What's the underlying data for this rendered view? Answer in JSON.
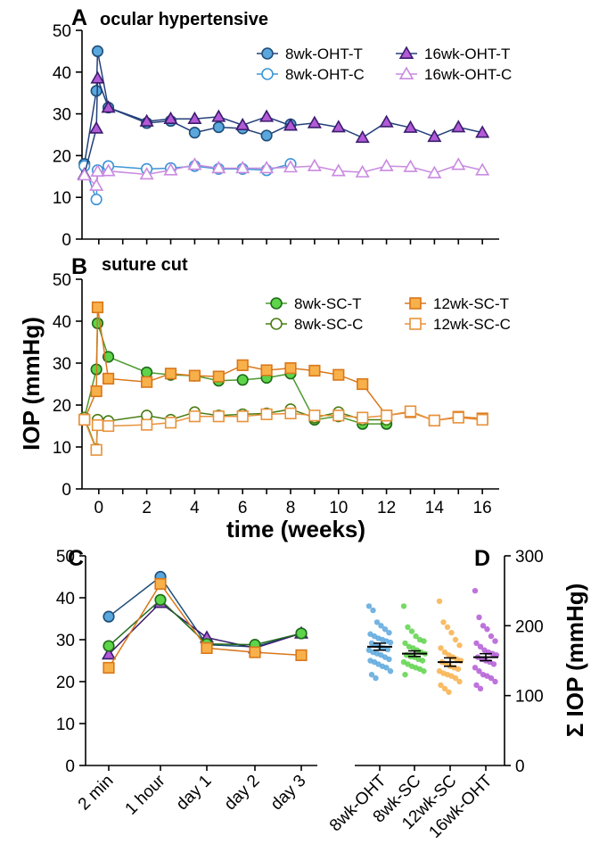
{
  "colors": {
    "ohtT_fill": "#5aa7dd",
    "ohtT_stroke": "#1f4e79",
    "ohtC": "#3d95d6",
    "oht16T_fill": "#b35ad6",
    "oht16T_stroke": "#3a1d6e",
    "oht16C": "#c98ae0",
    "scT_fill": "#5ed44a",
    "scT_stroke": "#1f6b1a",
    "scC": "#4a7d14",
    "sc12T_fill": "#f8b04a",
    "sc12T_stroke": "#d9771a",
    "sc12C": "#e8923a",
    "line_oht": "#23407a",
    "line_sc": "#4d9a2f"
  },
  "labels": {
    "panel_a": "A",
    "panel_a_title": "ocular hypertensive",
    "panel_b": "B",
    "panel_b_title": "suture cut",
    "panel_c": "C",
    "panel_d": "D",
    "y_left": "IOP (mmHg)",
    "x_bottom": "time (weeks)",
    "y_right": "Σ IOP (mmHg)"
  },
  "chart_data": [
    {
      "panel": "A",
      "type": "line",
      "title": "ocular hypertensive",
      "ylim": [
        0,
        50
      ],
      "yticks": [
        0,
        10,
        20,
        30,
        40,
        50
      ],
      "xlim": [
        -0.7,
        16.7
      ],
      "legend": "top-right",
      "series": [
        {
          "name": "8wk-OHT-T",
          "marker": "circle-filled",
          "points": [
            [
              -0.6,
              18
            ],
            [
              -0.1,
              35.5
            ],
            [
              -0.05,
              45
            ],
            [
              0.4,
              31.5
            ],
            [
              2,
              27.8
            ],
            [
              3,
              28.3
            ],
            [
              4,
              25.5
            ],
            [
              5,
              26.8
            ],
            [
              6,
              26.5
            ],
            [
              7,
              24.8
            ],
            [
              8,
              27.5
            ]
          ]
        },
        {
          "name": "8wk-OHT-C",
          "marker": "circle-open",
          "points": [
            [
              -0.6,
              17.5
            ],
            [
              -0.1,
              9.5
            ],
            [
              -0.05,
              16.5
            ],
            [
              0.4,
              17.5
            ],
            [
              2,
              16.8
            ],
            [
              3,
              17
            ],
            [
              4,
              17.5
            ],
            [
              5,
              16.8
            ],
            [
              6,
              16.8
            ],
            [
              7,
              16.5
            ],
            [
              8,
              18
            ]
          ]
        },
        {
          "name": "16wk-OHT-T",
          "marker": "triangle-filled",
          "points": [
            [
              -0.6,
              15.5
            ],
            [
              -0.1,
              26.5
            ],
            [
              -0.05,
              38.5
            ],
            [
              0.4,
              31.5
            ],
            [
              2,
              28.2
            ],
            [
              3,
              28.8
            ],
            [
              4,
              28.8
            ],
            [
              5,
              29.3
            ],
            [
              6,
              27.3
            ],
            [
              7,
              29.3
            ],
            [
              8,
              27.2
            ],
            [
              9,
              27.8
            ],
            [
              10,
              26.8
            ],
            [
              11,
              24.3
            ],
            [
              12,
              28
            ],
            [
              13,
              26.7
            ],
            [
              14,
              24.5
            ],
            [
              15,
              26.8
            ],
            [
              16,
              25.5
            ]
          ]
        },
        {
          "name": "16wk-OHT-C",
          "marker": "triangle-open",
          "points": [
            [
              -0.6,
              15.3
            ],
            [
              -0.1,
              12.8
            ],
            [
              -0.05,
              16.2
            ],
            [
              0.4,
              16.3
            ],
            [
              2,
              15.5
            ],
            [
              3,
              16.5
            ],
            [
              4,
              17.8
            ],
            [
              5,
              17
            ],
            [
              6,
              17
            ],
            [
              7,
              17
            ],
            [
              8,
              17.2
            ],
            [
              9,
              17.5
            ],
            [
              10,
              16.3
            ],
            [
              11,
              16
            ],
            [
              12,
              17.5
            ],
            [
              13,
              17.3
            ],
            [
              14,
              15.8
            ],
            [
              15,
              17.8
            ],
            [
              16,
              16.5
            ]
          ]
        }
      ]
    },
    {
      "panel": "B",
      "type": "line",
      "title": "suture cut",
      "xlabel": "time (weeks)",
      "ylabel": "IOP (mmHg)",
      "ylim": [
        0,
        50
      ],
      "yticks": [
        0,
        10,
        20,
        30,
        40,
        50
      ],
      "xlim": [
        -0.7,
        16.7
      ],
      "xticks": [
        0,
        2,
        4,
        6,
        8,
        10,
        12,
        14,
        16
      ],
      "legend": "top-right",
      "series": [
        {
          "name": "8wk-SC-T",
          "marker": "circle-filled",
          "points": [
            [
              -0.6,
              17
            ],
            [
              -0.1,
              28.5
            ],
            [
              -0.05,
              39.5
            ],
            [
              0.4,
              31.5
            ],
            [
              2,
              27.8
            ],
            [
              3,
              27.2
            ],
            [
              4,
              27
            ],
            [
              5,
              25.8
            ],
            [
              6,
              26
            ],
            [
              7,
              26.5
            ],
            [
              8,
              27.5
            ],
            [
              9,
              16.5
            ],
            [
              10,
              17.3
            ],
            [
              11,
              15.5
            ],
            [
              12,
              15.5
            ]
          ]
        },
        {
          "name": "8wk-SC-C",
          "marker": "circle-open",
          "points": [
            [
              -0.6,
              17
            ],
            [
              -0.1,
              9.5
            ],
            [
              -0.05,
              16.5
            ],
            [
              0.4,
              16.2
            ],
            [
              2,
              17.5
            ],
            [
              3,
              16.5
            ],
            [
              4,
              18.3
            ],
            [
              5,
              17.5
            ],
            [
              6,
              17.8
            ],
            [
              7,
              18
            ],
            [
              8,
              19
            ],
            [
              9,
              17
            ],
            [
              10,
              18.3
            ],
            [
              11,
              16.5
            ],
            [
              12,
              16.5
            ]
          ]
        },
        {
          "name": "12wk-SC-T",
          "marker": "square-filled",
          "points": [
            [
              -0.6,
              16.5
            ],
            [
              -0.1,
              23.3
            ],
            [
              -0.05,
              43.3
            ],
            [
              0.4,
              26.3
            ],
            [
              2,
              25.5
            ],
            [
              3,
              27.5
            ],
            [
              4,
              27
            ],
            [
              5,
              26.8
            ],
            [
              6,
              29.5
            ],
            [
              7,
              28.3
            ],
            [
              8,
              28.8
            ],
            [
              9,
              28.2
            ],
            [
              10,
              27.2
            ],
            [
              11,
              25
            ],
            [
              12,
              17.5
            ],
            [
              13,
              18.3
            ],
            [
              14,
              16.3
            ],
            [
              15,
              17.2
            ],
            [
              16,
              16.8
            ]
          ]
        },
        {
          "name": "12wk-SC-C",
          "marker": "square-open",
          "points": [
            [
              -0.6,
              16.5
            ],
            [
              -0.1,
              9.3
            ],
            [
              -0.05,
              15.2
            ],
            [
              0.4,
              15
            ],
            [
              2,
              15.3
            ],
            [
              3,
              15.8
            ],
            [
              4,
              17.3
            ],
            [
              5,
              17.3
            ],
            [
              6,
              17.3
            ],
            [
              7,
              17.8
            ],
            [
              8,
              18
            ],
            [
              9,
              17.5
            ],
            [
              10,
              17.5
            ],
            [
              11,
              17
            ],
            [
              12,
              17.5
            ],
            [
              13,
              18.5
            ],
            [
              14,
              16.3
            ],
            [
              15,
              17
            ],
            [
              16,
              16.5
            ]
          ]
        }
      ]
    },
    {
      "panel": "C",
      "type": "line",
      "categories": [
        "2 min",
        "1 hour",
        "day 1",
        "day 2",
        "day 3"
      ],
      "ylim": [
        0,
        50
      ],
      "yticks": [
        0,
        10,
        20,
        30,
        40,
        50
      ],
      "series": [
        {
          "name": "8wk-OHT-T",
          "marker": "circle-filled",
          "values": [
            35.5,
            45,
            28.8,
            28.3,
            31.5
          ]
        },
        {
          "name": "16wk-OHT-T",
          "marker": "triangle-filled",
          "values": [
            26.5,
            38.8,
            30.5,
            28,
            31.5
          ]
        },
        {
          "name": "8wk-SC-T",
          "marker": "circle-filled",
          "values": [
            28.5,
            39.5,
            29,
            28.8,
            31.5
          ]
        },
        {
          "name": "12wk-SC-T",
          "marker": "square-filled",
          "values": [
            23.3,
            43.3,
            28,
            27,
            26.3
          ]
        }
      ]
    },
    {
      "panel": "D",
      "type": "scatter",
      "ylabel": "Σ IOP (mmHg)",
      "ylim": [
        0,
        300
      ],
      "yticks": [
        0,
        100,
        200,
        300
      ],
      "categories": [
        "8wk-OHT",
        "8wk-SC",
        "12wk-SC",
        "16wk-OHT"
      ],
      "means": [
        170,
        160,
        148,
        155
      ],
      "sems": [
        5,
        4,
        6,
        5
      ],
      "points": [
        [
          228,
          222,
          205,
          200,
          195,
          190,
          188,
          185,
          182,
          180,
          178,
          176,
          175,
          172,
          170,
          168,
          166,
          165,
          162,
          160,
          158,
          155,
          152,
          150,
          148,
          145,
          142,
          140,
          135,
          130,
          125
        ],
        [
          228,
          198,
          192,
          185,
          180,
          178,
          175,
          170,
          168,
          165,
          162,
          160,
          158,
          156,
          155,
          152,
          150,
          148,
          145,
          142,
          140,
          138,
          135,
          130
        ],
        [
          235,
          205,
          198,
          190,
          180,
          172,
          168,
          162,
          158,
          155,
          152,
          150,
          148,
          145,
          142,
          140,
          138,
          135,
          132,
          130,
          128,
          125,
          120,
          115,
          110,
          105
        ],
        [
          250,
          212,
          200,
          195,
          185,
          178,
          175,
          170,
          165,
          162,
          160,
          158,
          155,
          152,
          150,
          148,
          145,
          140,
          135,
          130,
          128,
          125,
          120,
          115,
          110
        ]
      ]
    }
  ]
}
